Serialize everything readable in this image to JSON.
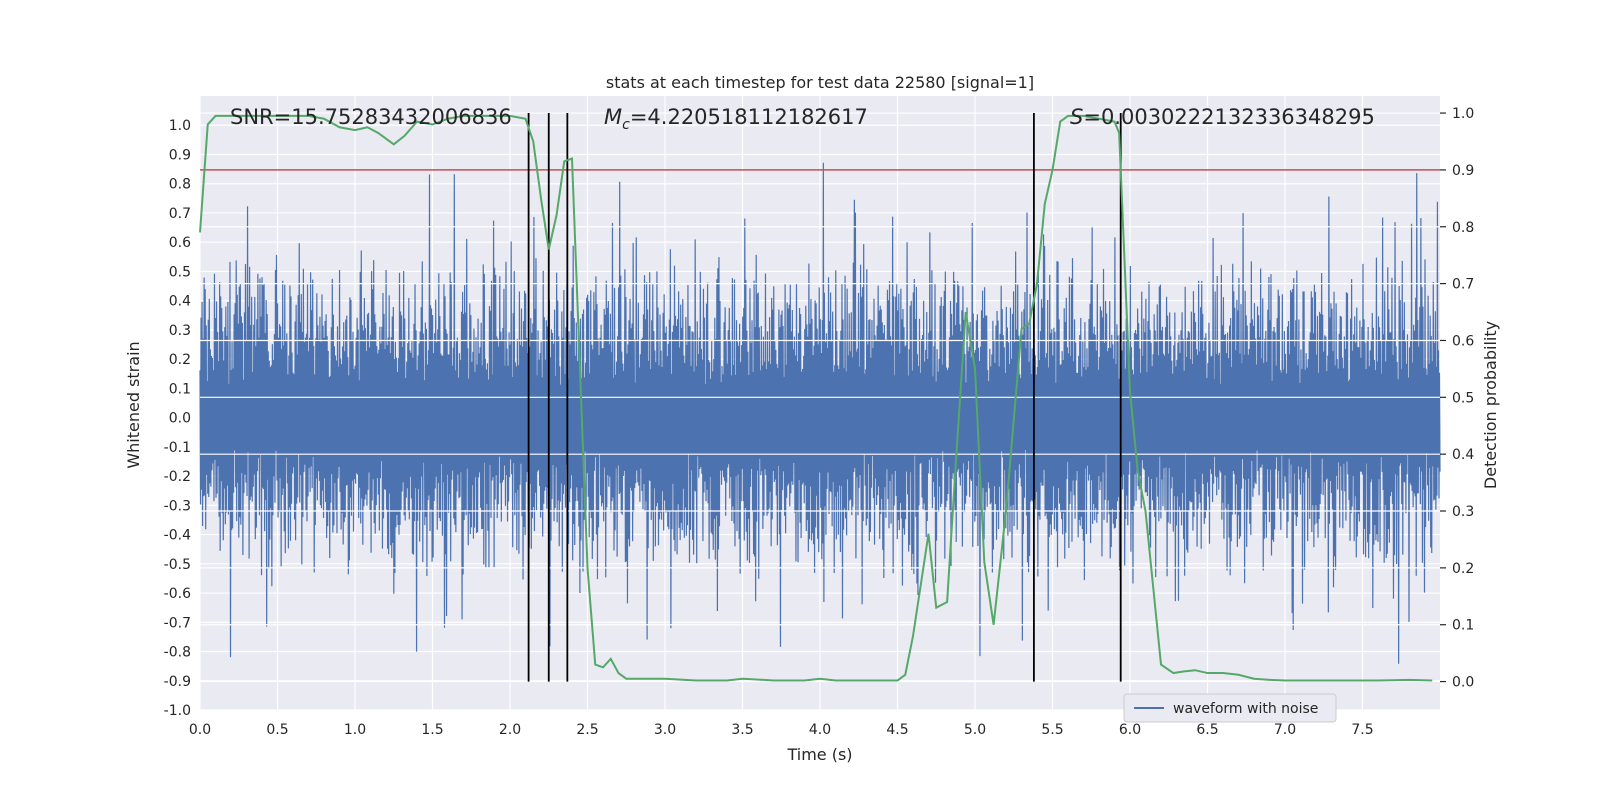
{
  "chart_data": {
    "type": "line",
    "title": "stats at each timestep for test data 22580 [signal=1]",
    "xlabel": "Time (s)",
    "ylabel_left": "Whitened strain",
    "ylabel_right": "Detection probability",
    "xlim": [
      0,
      8.0
    ],
    "ylim_left": [
      -1.0,
      1.1
    ],
    "ylim_right": [
      -0.05,
      1.03
    ],
    "x_ticks": [
      "0.0",
      "0.5",
      "1.0",
      "1.5",
      "2.0",
      "2.5",
      "3.0",
      "3.5",
      "4.0",
      "4.5",
      "5.0",
      "5.5",
      "6.0",
      "6.5",
      "7.0",
      "7.5"
    ],
    "x_tick_values": [
      0,
      0.5,
      1.0,
      1.5,
      2.0,
      2.5,
      3.0,
      3.5,
      4.0,
      4.5,
      5.0,
      5.5,
      6.0,
      6.5,
      7.0,
      7.5
    ],
    "y_left_ticks": [
      "-1.0",
      "-0.9",
      "-0.8",
      "-0.7",
      "-0.6",
      "-0.5",
      "-0.4",
      "-0.3",
      "-0.2",
      "-0.1",
      "0.0",
      "0.1",
      "0.2",
      "0.3",
      "0.4",
      "0.5",
      "0.6",
      "0.7",
      "0.8",
      "0.9",
      "1.0"
    ],
    "y_left_tick_values": [
      -1.0,
      -0.9,
      -0.8,
      -0.7,
      -0.6,
      -0.5,
      -0.4,
      -0.3,
      -0.2,
      -0.1,
      0.0,
      0.1,
      0.2,
      0.3,
      0.4,
      0.5,
      0.6,
      0.7,
      0.8,
      0.9,
      1.0
    ],
    "y_right_ticks": [
      "0.0",
      "0.1",
      "0.2",
      "0.3",
      "0.4",
      "0.5",
      "0.6",
      "0.7",
      "0.8",
      "0.9",
      "1.0"
    ],
    "y_right_tick_values": [
      0.0,
      0.1,
      0.2,
      0.3,
      0.4,
      0.5,
      0.6,
      0.7,
      0.8,
      0.9,
      1.0
    ],
    "annotations": {
      "snr": "SNR=15.75283432006836",
      "mc_prefix": "M",
      "mc_sub": "c",
      "mc_value": "=4.220518112182617",
      "s_prefix": "S",
      "s_value": "=0.0030222132336348295"
    },
    "threshold": {
      "y_right": 0.9,
      "color": "#c44e52"
    },
    "vertical_markers_x": [
      2.12,
      2.25,
      2.37,
      5.38,
      5.94
    ],
    "grid": true,
    "legend": {
      "position": "bottom-right",
      "entries": [
        "waveform with noise"
      ]
    },
    "series": [
      {
        "name": "waveform with noise",
        "axis": "left",
        "color": "#4c72b0",
        "description_envelope": {
          "x": [
            0,
            8.0
          ],
          "typical_amplitude": 0.5,
          "peak_amplitude": 1.0
        }
      },
      {
        "axis": "right",
        "color": "#55a868",
        "x": [
          0.0,
          0.05,
          0.1,
          0.2,
          0.3,
          0.4,
          0.5,
          0.6,
          0.7,
          0.8,
          0.9,
          1.0,
          1.08,
          1.15,
          1.25,
          1.32,
          1.4,
          1.5,
          1.6,
          1.7,
          1.8,
          1.9,
          2.0,
          2.1,
          2.15,
          2.2,
          2.25,
          2.3,
          2.35,
          2.4,
          2.45,
          2.5,
          2.55,
          2.6,
          2.65,
          2.7,
          2.75,
          2.8,
          2.9,
          3.0,
          3.2,
          3.4,
          3.5,
          3.7,
          3.9,
          4.0,
          4.1,
          4.3,
          4.5,
          4.55,
          4.6,
          4.7,
          4.75,
          4.82,
          4.88,
          4.94,
          5.0,
          5.06,
          5.12,
          5.2,
          5.3,
          5.35,
          5.4,
          5.45,
          5.5,
          5.55,
          5.6,
          5.7,
          5.8,
          5.9,
          5.93,
          6.0,
          6.05,
          6.1,
          6.2,
          6.28,
          6.35,
          6.42,
          6.5,
          6.55,
          6.6,
          6.7,
          6.8,
          6.9,
          7.0,
          7.2,
          7.4,
          7.6,
          7.8,
          7.95
        ],
        "values": [
          0.79,
          0.98,
          0.995,
          0.995,
          0.995,
          0.995,
          0.995,
          0.995,
          0.995,
          0.99,
          0.975,
          0.97,
          0.975,
          0.965,
          0.945,
          0.96,
          0.985,
          0.98,
          0.99,
          0.995,
          0.995,
          0.995,
          0.995,
          0.99,
          0.95,
          0.85,
          0.76,
          0.82,
          0.915,
          0.92,
          0.56,
          0.2,
          0.03,
          0.025,
          0.04,
          0.015,
          0.005,
          0.005,
          0.005,
          0.005,
          0.002,
          0.002,
          0.005,
          0.002,
          0.002,
          0.005,
          0.002,
          0.002,
          0.002,
          0.012,
          0.08,
          0.26,
          0.13,
          0.14,
          0.4,
          0.65,
          0.55,
          0.21,
          0.1,
          0.3,
          0.62,
          0.63,
          0.7,
          0.84,
          0.9,
          0.985,
          0.995,
          0.995,
          0.99,
          0.985,
          0.965,
          0.51,
          0.37,
          0.3,
          0.03,
          0.015,
          0.018,
          0.02,
          0.015,
          0.015,
          0.015,
          0.012,
          0.005,
          0.003,
          0.002,
          0.002,
          0.002,
          0.002,
          0.003,
          0.002
        ]
      }
    ]
  }
}
